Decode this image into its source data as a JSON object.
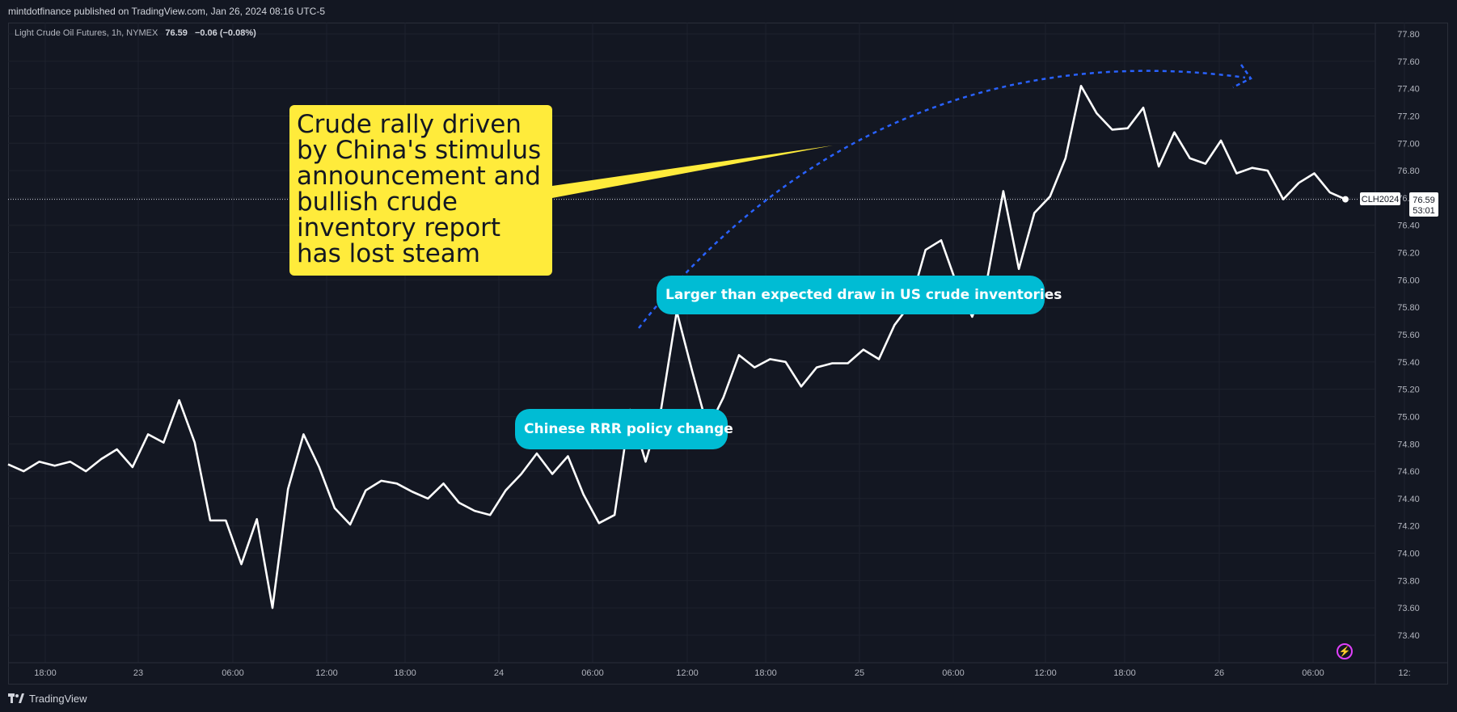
{
  "header": {
    "published_by": "mintdotfinance published on TradingView.com, Jan 26, 2024 08:16 UTC-5"
  },
  "legend": {
    "symbol_desc": "Light Crude Oil Futures, 1h, NYMEX",
    "last": "76.59",
    "change": "−0.06 (−0.08%)"
  },
  "annotations": {
    "yellow_note": "Crude rally driven by China's stimulus announcement and bullish crude inventory report has lost steam",
    "draw_note": "Larger than expected draw in US crude inventories",
    "rrr_note": "Chinese RRR policy change"
  },
  "price_tag": {
    "symbol": "CLH2024",
    "price": "76.59",
    "countdown": "53:01"
  },
  "footer": {
    "brand": "TradingView"
  },
  "colors": {
    "background": "#131722",
    "line": "#ffffff",
    "grid": "#1e222d",
    "axis_text": "#b2b5be",
    "yellow_note": "#ffeb3b",
    "cyan_note": "#00bcd4",
    "arrow": "#2962ff"
  },
  "icons": {
    "flash": "lightning-icon",
    "brand": "tradingview-logo-icon"
  },
  "chart_data": {
    "type": "line",
    "title": "",
    "xlabel": "",
    "ylabel": "",
    "ylim": [
      73.28,
      77.9
    ],
    "y_ticks": [
      "77.80",
      "77.60",
      "77.40",
      "77.20",
      "77.00",
      "76.80",
      "76.60",
      "76.40",
      "76.20",
      "76.00",
      "75.80",
      "75.60",
      "75.40",
      "75.20",
      "75.00",
      "74.80",
      "74.60",
      "74.40",
      "74.20",
      "74.00",
      "73.80",
      "73.60",
      "73.40"
    ],
    "x_ticks": [
      "18:00",
      "23",
      "06:00",
      "12:00",
      "18:00",
      "24",
      "06:00",
      "12:00",
      "18:00",
      "25",
      "06:00",
      "12:00",
      "18:00",
      "26",
      "06:00",
      "12:"
    ],
    "grid": true,
    "series": [
      {
        "values": [
          74.65,
          74.6,
          74.67,
          74.64,
          74.67,
          74.6,
          74.69,
          74.76,
          74.63,
          74.87,
          74.81,
          75.12,
          74.81,
          74.24,
          74.24,
          73.92,
          74.25,
          73.6,
          74.47,
          74.87,
          74.63,
          74.33,
          74.21,
          74.46,
          74.53,
          74.51,
          74.45,
          74.4,
          74.51,
          74.37,
          74.31,
          74.28,
          74.46,
          74.58,
          74.73,
          74.58,
          74.71,
          74.43,
          74.22,
          74.28,
          75.05,
          74.67,
          75.06,
          75.77,
          75.33,
          74.91,
          75.14,
          75.45,
          75.36,
          75.42,
          75.4,
          75.22,
          75.36,
          75.39,
          75.39,
          75.49,
          75.42,
          75.67,
          75.82,
          76.22,
          76.29,
          75.97,
          75.73,
          76.03,
          76.65,
          76.08,
          76.49,
          76.61,
          76.89,
          77.42,
          77.22,
          77.1,
          77.11,
          77.26,
          76.83,
          77.08,
          76.89,
          76.85,
          77.02,
          76.78,
          76.82,
          76.8,
          76.59,
          76.71,
          76.78,
          76.64,
          76.59
        ]
      }
    ]
  }
}
